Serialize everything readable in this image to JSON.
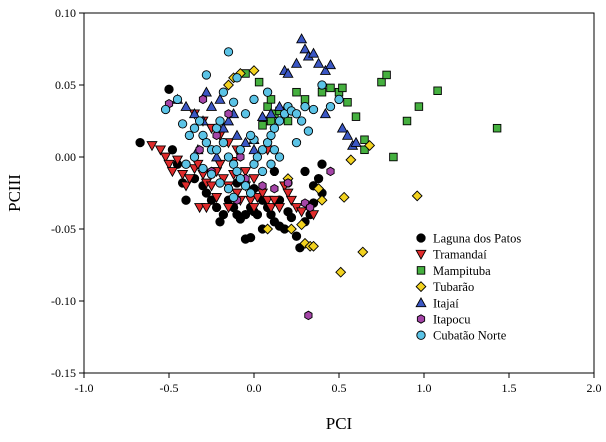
{
  "chart_data": {
    "type": "scatter",
    "title": "",
    "xlabel": "PCI",
    "ylabel": "PCIII",
    "xlim": [
      -1.0,
      2.0
    ],
    "ylim": [
      -0.15,
      0.1
    ],
    "x_ticks": [
      "-1.0",
      "-0.5",
      "0.0",
      "0.5",
      "1.0",
      "1.5",
      "2.0"
    ],
    "y_ticks": [
      "0.10",
      "0.05",
      "0.00",
      "-0.05",
      "-0.10",
      "-0.15"
    ],
    "grid": false,
    "legend_position": "lower-right",
    "series": [
      {
        "name": "Laguna dos Patos",
        "marker": "circle",
        "color": "#000000",
        "points": [
          [
            -0.67,
            0.01
          ],
          [
            -0.5,
            0.047
          ],
          [
            -0.48,
            0.005
          ],
          [
            -0.45,
            -0.005
          ],
          [
            -0.42,
            -0.018
          ],
          [
            -0.4,
            -0.03
          ],
          [
            -0.35,
            -0.015
          ],
          [
            -0.3,
            -0.02
          ],
          [
            -0.28,
            -0.025
          ],
          [
            -0.25,
            -0.03
          ],
          [
            -0.22,
            -0.035
          ],
          [
            -0.2,
            -0.045
          ],
          [
            -0.18,
            -0.04
          ],
          [
            -0.15,
            -0.03
          ],
          [
            -0.12,
            -0.035
          ],
          [
            -0.1,
            -0.04
          ],
          [
            -0.08,
            -0.043
          ],
          [
            -0.05,
            -0.04
          ],
          [
            -0.02,
            -0.035
          ],
          [
            0.0,
            -0.038
          ],
          [
            0.02,
            -0.04
          ],
          [
            0.05,
            -0.03
          ],
          [
            0.08,
            -0.035
          ],
          [
            0.1,
            -0.04
          ],
          [
            0.12,
            -0.045
          ],
          [
            0.15,
            -0.048
          ],
          [
            0.18,
            -0.05
          ],
          [
            0.2,
            -0.038
          ],
          [
            0.22,
            -0.042
          ],
          [
            0.25,
            -0.055
          ],
          [
            0.27,
            -0.063
          ],
          [
            0.3,
            -0.045
          ],
          [
            0.33,
            -0.04
          ],
          [
            0.35,
            -0.02
          ],
          [
            0.38,
            -0.015
          ],
          [
            0.4,
            -0.005
          ],
          [
            0.4,
            -0.025
          ],
          [
            -0.05,
            -0.057
          ],
          [
            -0.02,
            -0.056
          ],
          [
            0.05,
            -0.05
          ],
          [
            0.12,
            -0.01
          ],
          [
            0.15,
            -0.03
          ],
          [
            -0.1,
            -0.018
          ],
          [
            0.0,
            -0.022
          ],
          [
            0.2,
            -0.018
          ],
          [
            0.3,
            -0.01
          ],
          [
            0.35,
            -0.032
          ]
        ]
      },
      {
        "name": "Tramandaí",
        "marker": "triangle-down",
        "color": "#e02b2b",
        "points": [
          [
            -0.6,
            0.008
          ],
          [
            -0.55,
            0.005
          ],
          [
            -0.52,
            0.0
          ],
          [
            -0.5,
            -0.005
          ],
          [
            -0.48,
            -0.01
          ],
          [
            -0.45,
            -0.002
          ],
          [
            -0.42,
            -0.012
          ],
          [
            -0.4,
            -0.02
          ],
          [
            -0.38,
            -0.015
          ],
          [
            -0.35,
            -0.008
          ],
          [
            -0.33,
            -0.005
          ],
          [
            -0.3,
            -0.012
          ],
          [
            -0.28,
            -0.018
          ],
          [
            -0.25,
            -0.02
          ],
          [
            -0.22,
            -0.01
          ],
          [
            -0.2,
            -0.005
          ],
          [
            -0.18,
            -0.015
          ],
          [
            -0.15,
            -0.02
          ],
          [
            -0.12,
            -0.012
          ],
          [
            -0.1,
            -0.025
          ],
          [
            -0.08,
            -0.03
          ],
          [
            -0.05,
            -0.02
          ],
          [
            -0.02,
            -0.03
          ],
          [
            0.0,
            -0.035
          ],
          [
            0.02,
            -0.028
          ],
          [
            0.05,
            -0.025
          ],
          [
            0.08,
            -0.03
          ],
          [
            0.1,
            -0.035
          ],
          [
            0.12,
            -0.03
          ],
          [
            0.15,
            -0.035
          ],
          [
            0.18,
            -0.02
          ],
          [
            0.2,
            -0.025
          ],
          [
            0.22,
            -0.03
          ],
          [
            0.25,
            -0.035
          ],
          [
            0.28,
            -0.038
          ],
          [
            0.32,
            -0.035
          ],
          [
            0.35,
            -0.04
          ],
          [
            -0.35,
            0.03
          ],
          [
            -0.3,
            0.025
          ],
          [
            -0.25,
            0.02
          ],
          [
            -0.2,
            0.015
          ],
          [
            -0.15,
            0.01
          ],
          [
            -0.1,
            0.005
          ],
          [
            -0.32,
            -0.035
          ],
          [
            -0.28,
            -0.035
          ],
          [
            -0.15,
            -0.035
          ],
          [
            -0.05,
            -0.01
          ],
          [
            0.0,
            -0.015
          ],
          [
            0.08,
            0.005
          ],
          [
            -0.22,
            -0.028
          ],
          [
            -0.12,
            -0.003
          ]
        ]
      },
      {
        "name": "Mampituba",
        "marker": "square",
        "color": "#45b03f",
        "points": [
          [
            -0.05,
            0.058
          ],
          [
            0.03,
            0.052
          ],
          [
            0.08,
            0.035
          ],
          [
            0.1,
            0.04
          ],
          [
            0.12,
            0.03
          ],
          [
            0.15,
            0.032
          ],
          [
            0.18,
            0.028
          ],
          [
            0.2,
            0.025
          ],
          [
            0.08,
            0.025
          ],
          [
            0.05,
            0.022
          ],
          [
            0.4,
            0.045
          ],
          [
            0.45,
            0.048
          ],
          [
            0.5,
            0.045
          ],
          [
            0.52,
            0.048
          ],
          [
            0.55,
            0.038
          ],
          [
            0.6,
            0.028
          ],
          [
            0.65,
            0.012
          ],
          [
            0.65,
            0.005
          ],
          [
            0.75,
            0.052
          ],
          [
            0.78,
            0.057
          ],
          [
            0.82,
            0.0
          ],
          [
            0.9,
            0.025
          ],
          [
            0.97,
            0.035
          ],
          [
            1.08,
            0.046
          ],
          [
            1.43,
            0.02
          ],
          [
            0.3,
            0.04
          ],
          [
            0.25,
            0.045
          ],
          [
            0.1,
            0.025
          ]
        ]
      },
      {
        "name": "Tubarão",
        "marker": "diamond",
        "color": "#f2d21f",
        "points": [
          [
            -0.12,
            0.055
          ],
          [
            -0.08,
            0.058
          ],
          [
            -0.15,
            0.05
          ],
          [
            0.0,
            0.06
          ],
          [
            0.22,
            -0.05
          ],
          [
            0.28,
            -0.047
          ],
          [
            0.3,
            -0.06
          ],
          [
            0.33,
            -0.062
          ],
          [
            0.35,
            -0.062
          ],
          [
            0.38,
            -0.022
          ],
          [
            0.4,
            -0.03
          ],
          [
            0.51,
            -0.08
          ],
          [
            0.53,
            -0.028
          ],
          [
            0.57,
            -0.002
          ],
          [
            0.64,
            -0.066
          ],
          [
            0.68,
            0.008
          ],
          [
            0.96,
            -0.027
          ],
          [
            0.08,
            -0.05
          ],
          [
            0.2,
            -0.015
          ]
        ]
      },
      {
        "name": "Itajaí",
        "marker": "triangle-up",
        "color": "#3b57c4",
        "points": [
          [
            -0.45,
            0.04
          ],
          [
            -0.4,
            0.035
          ],
          [
            -0.35,
            0.03
          ],
          [
            -0.3,
            0.025
          ],
          [
            -0.28,
            0.045
          ],
          [
            -0.25,
            0.035
          ],
          [
            -0.2,
            0.04
          ],
          [
            -0.18,
            0.02
          ],
          [
            -0.15,
            0.025
          ],
          [
            -0.12,
            0.03
          ],
          [
            -0.1,
            0.015
          ],
          [
            -0.05,
            0.01
          ],
          [
            0.0,
            0.005
          ],
          [
            0.05,
            0.028
          ],
          [
            0.1,
            0.03
          ],
          [
            0.15,
            0.035
          ],
          [
            0.18,
            0.06
          ],
          [
            0.2,
            0.058
          ],
          [
            0.25,
            0.065
          ],
          [
            0.28,
            0.082
          ],
          [
            0.3,
            0.075
          ],
          [
            0.32,
            0.07
          ],
          [
            0.35,
            0.072
          ],
          [
            0.38,
            0.065
          ],
          [
            0.42,
            0.06
          ],
          [
            0.45,
            0.064
          ],
          [
            0.52,
            0.02
          ],
          [
            0.55,
            0.015
          ],
          [
            0.58,
            0.008
          ],
          [
            0.6,
            0.01
          ],
          [
            0.42,
            0.03
          ],
          [
            -0.33,
            0.005
          ],
          [
            -0.22,
            0.0
          ],
          [
            0.0,
            0.012
          ]
        ]
      },
      {
        "name": "Itapocu",
        "marker": "hexagon",
        "color": "#a545a8",
        "points": [
          [
            -0.5,
            0.037
          ],
          [
            -0.32,
            0.005
          ],
          [
            -0.3,
            0.04
          ],
          [
            -0.25,
            -0.01
          ],
          [
            -0.22,
            0.015
          ],
          [
            -0.15,
            0.03
          ],
          [
            -0.08,
            0.0
          ],
          [
            -0.05,
            -0.015
          ],
          [
            -0.1,
            -0.03
          ],
          [
            0.05,
            -0.02
          ],
          [
            0.12,
            -0.022
          ],
          [
            0.2,
            -0.018
          ],
          [
            0.3,
            -0.032
          ],
          [
            0.33,
            -0.035
          ],
          [
            0.45,
            -0.01
          ],
          [
            0.32,
            -0.11
          ]
        ]
      },
      {
        "name": "Cubatão Norte",
        "marker": "circle",
        "color": "#5bc3e6",
        "points": [
          [
            -0.52,
            0.033
          ],
          [
            -0.45,
            0.04
          ],
          [
            -0.42,
            0.023
          ],
          [
            -0.38,
            0.015
          ],
          [
            -0.35,
            0.02
          ],
          [
            -0.32,
            0.025
          ],
          [
            -0.3,
            0.015
          ],
          [
            -0.28,
            0.01
          ],
          [
            -0.25,
            0.005
          ],
          [
            -0.22,
            0.02
          ],
          [
            -0.2,
            0.025
          ],
          [
            -0.18,
            0.01
          ],
          [
            -0.15,
            0.0
          ],
          [
            -0.12,
            -0.005
          ],
          [
            -0.1,
            -0.01
          ],
          [
            -0.08,
            -0.015
          ],
          [
            -0.05,
            -0.02
          ],
          [
            -0.02,
            -0.025
          ],
          [
            0.0,
            -0.005
          ],
          [
            0.02,
            0.0
          ],
          [
            0.05,
            0.005
          ],
          [
            0.08,
            0.01
          ],
          [
            0.1,
            0.015
          ],
          [
            0.12,
            0.02
          ],
          [
            0.15,
            0.025
          ],
          [
            0.18,
            0.03
          ],
          [
            0.2,
            0.035
          ],
          [
            0.22,
            0.032
          ],
          [
            0.25,
            0.03
          ],
          [
            0.28,
            0.025
          ],
          [
            0.3,
            0.035
          ],
          [
            0.35,
            0.033
          ],
          [
            0.4,
            0.05
          ],
          [
            0.45,
            0.035
          ],
          [
            0.5,
            0.04
          ],
          [
            -0.28,
            0.057
          ],
          [
            -0.15,
            0.073
          ],
          [
            -0.1,
            0.055
          ],
          [
            -0.4,
            -0.005
          ],
          [
            -0.35,
            0.0
          ],
          [
            -0.3,
            -0.008
          ],
          [
            -0.25,
            -0.012
          ],
          [
            -0.2,
            -0.018
          ],
          [
            -0.15,
            -0.022
          ],
          [
            -0.12,
            -0.028
          ],
          [
            0.0,
            0.012
          ],
          [
            0.05,
            -0.01
          ],
          [
            0.1,
            -0.005
          ],
          [
            0.15,
            0.0
          ],
          [
            0.25,
            0.01
          ],
          [
            -0.08,
            0.005
          ],
          [
            -0.05,
            0.03
          ],
          [
            0.0,
            0.04
          ],
          [
            -0.18,
            0.045
          ],
          [
            -0.02,
            0.015
          ],
          [
            0.12,
            0.005
          ],
          [
            0.32,
            0.018
          ],
          [
            -0.22,
            0.005
          ],
          [
            -0.12,
            0.038
          ],
          [
            0.08,
            0.045
          ]
        ]
      }
    ]
  }
}
